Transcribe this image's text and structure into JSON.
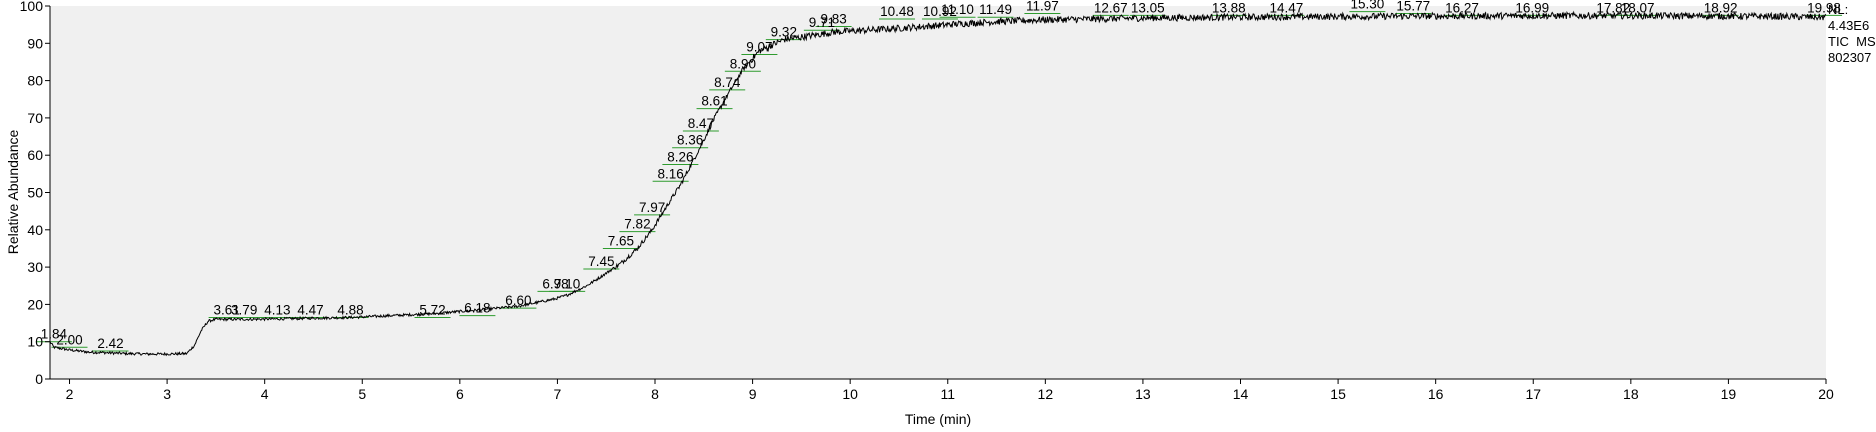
{
  "chart_data": {
    "type": "line",
    "title": "",
    "xlabel": "Time (min)",
    "ylabel": "Relative Abundance",
    "xlim": [
      1.8,
      20
    ],
    "ylim": [
      0,
      100
    ],
    "x_ticks": [
      2,
      3,
      4,
      5,
      6,
      7,
      8,
      9,
      10,
      11,
      12,
      13,
      14,
      15,
      16,
      17,
      18,
      19,
      20
    ],
    "y_ticks": [
      0,
      10,
      20,
      30,
      40,
      50,
      60,
      70,
      80,
      90,
      100
    ],
    "grid": false,
    "background": "#f0f0f0",
    "line_color": "#000000",
    "label_marker_color": "#2e9b2e",
    "annotation": {
      "nl_label": "NL:",
      "nl_value": "4.43E6",
      "scan_filter": "TIC  MS",
      "file_name": "802307"
    },
    "series": [
      {
        "x": [
          1.8,
          1.84,
          2.0,
          2.2,
          2.42,
          2.6,
          2.8,
          3.0,
          3.2,
          3.28,
          3.35,
          3.42,
          3.5,
          3.61,
          3.79,
          4.13,
          4.47,
          4.88,
          5.3,
          5.72,
          6.18,
          6.6,
          6.98,
          7.1,
          7.3,
          7.45,
          7.65,
          7.82,
          7.97,
          8.16,
          8.26,
          8.36,
          8.47,
          8.61,
          8.74,
          8.9,
          9.07,
          9.32,
          9.71,
          9.83,
          10.48,
          10.92,
          11.1,
          11.49,
          11.97,
          12.67,
          13.05,
          13.88,
          14.47,
          15.3,
          15.77,
          16.27,
          16.99,
          17.82,
          18.07,
          18.92,
          19.5,
          19.98
        ],
        "y": [
          10.0,
          8.5,
          7.8,
          7.2,
          7.0,
          6.8,
          6.7,
          6.7,
          6.8,
          9.0,
          13.0,
          15.5,
          16.0,
          16.0,
          16.0,
          16.1,
          16.3,
          16.5,
          17.0,
          17.5,
          18.5,
          19.5,
          21.5,
          22.5,
          25.0,
          27.5,
          31.0,
          35.0,
          40.0,
          48.0,
          52.0,
          57.0,
          62.5,
          70.0,
          76.0,
          83.0,
          88.0,
          91.0,
          92.5,
          93.0,
          94.0,
          94.8,
          95.2,
          95.8,
          96.3,
          96.6,
          96.8,
          97.0,
          97.1,
          97.2,
          97.3,
          97.3,
          97.4,
          97.4,
          97.4,
          97.3,
          97.2,
          97.0
        ]
      }
    ],
    "peak_labels": [
      {
        "text": "1.84",
        "x": 1.84,
        "y": 10.0
      },
      {
        "text": "2.00",
        "x": 2.0,
        "y": 8.5
      },
      {
        "text": "2.42",
        "x": 2.42,
        "y": 7.5
      },
      {
        "text": "3.61",
        "x": 3.61,
        "y": 16.5
      },
      {
        "text": "3.79",
        "x": 3.79,
        "y": 16.5
      },
      {
        "text": "4.13",
        "x": 4.13,
        "y": 16.5
      },
      {
        "text": "4.47",
        "x": 4.47,
        "y": 16.5
      },
      {
        "text": "4.88",
        "x": 4.88,
        "y": 16.5
      },
      {
        "text": "5.72",
        "x": 5.72,
        "y": 16.5
      },
      {
        "text": "6.18",
        "x": 6.18,
        "y": 17.0
      },
      {
        "text": "6.60",
        "x": 6.6,
        "y": 19.0
      },
      {
        "text": "6.98",
        "x": 6.98,
        "y": 23.5
      },
      {
        "text": "7.10",
        "x": 7.1,
        "y": 23.5
      },
      {
        "text": "7.45",
        "x": 7.45,
        "y": 29.5
      },
      {
        "text": "7.65",
        "x": 7.65,
        "y": 35.0
      },
      {
        "text": "7.82",
        "x": 7.82,
        "y": 39.5
      },
      {
        "text": "7.97",
        "x": 7.97,
        "y": 44.0
      },
      {
        "text": "8.16",
        "x": 8.16,
        "y": 53.0
      },
      {
        "text": "8.26",
        "x": 8.26,
        "y": 57.5
      },
      {
        "text": "8.36",
        "x": 8.36,
        "y": 62.0
      },
      {
        "text": "8.47",
        "x": 8.47,
        "y": 66.5
      },
      {
        "text": "8.61",
        "x": 8.61,
        "y": 72.5
      },
      {
        "text": "8.74",
        "x": 8.74,
        "y": 77.5
      },
      {
        "text": "8.90",
        "x": 8.9,
        "y": 82.5
      },
      {
        "text": "9.07",
        "x": 9.07,
        "y": 87.0
      },
      {
        "text": "9.32",
        "x": 9.32,
        "y": 91.0
      },
      {
        "text": "9.71",
        "x": 9.71,
        "y": 93.5
      },
      {
        "text": "9.83",
        "x": 9.83,
        "y": 94.5
      },
      {
        "text": "10.48",
        "x": 10.48,
        "y": 96.5
      },
      {
        "text": "10.92",
        "x": 10.92,
        "y": 96.5
      },
      {
        "text": "11.10",
        "x": 11.1,
        "y": 97.0
      },
      {
        "text": "11.49",
        "x": 11.49,
        "y": 97.0
      },
      {
        "text": "11.97",
        "x": 11.97,
        "y": 98.0
      },
      {
        "text": "12.67",
        "x": 12.67,
        "y": 97.5
      },
      {
        "text": "13.05",
        "x": 13.05,
        "y": 97.5
      },
      {
        "text": "13.88",
        "x": 13.88,
        "y": 97.5
      },
      {
        "text": "14.47",
        "x": 14.47,
        "y": 97.5
      },
      {
        "text": "15.30",
        "x": 15.3,
        "y": 98.5
      },
      {
        "text": "15.77",
        "x": 15.77,
        "y": 98.0
      },
      {
        "text": "16.27",
        "x": 16.27,
        "y": 97.5
      },
      {
        "text": "16.99",
        "x": 16.99,
        "y": 97.5
      },
      {
        "text": "17.82",
        "x": 17.82,
        "y": 97.5
      },
      {
        "text": "18.07",
        "x": 18.07,
        "y": 97.5
      },
      {
        "text": "18.92",
        "x": 18.92,
        "y": 97.5
      },
      {
        "text": "19.98",
        "x": 19.98,
        "y": 97.5
      }
    ]
  }
}
